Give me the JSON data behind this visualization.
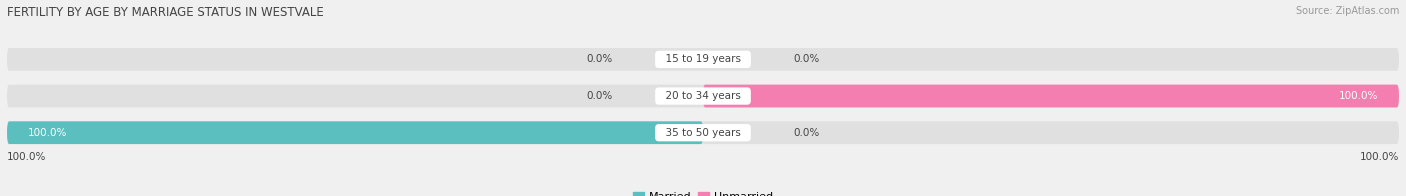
{
  "title": "FERTILITY BY AGE BY MARRIAGE STATUS IN WESTVALE",
  "source": "Source: ZipAtlas.com",
  "categories": [
    "15 to 19 years",
    "20 to 34 years",
    "35 to 50 years"
  ],
  "married_values": [
    0.0,
    0.0,
    100.0
  ],
  "unmarried_values": [
    0.0,
    100.0,
    0.0
  ],
  "married_color": "#5bbfbf",
  "unmarried_color": "#f47eb0",
  "bar_bg_color": "#e0e0e0",
  "bar_height": 0.62,
  "title_fontsize": 8.5,
  "label_fontsize": 7.5,
  "value_fontsize": 7.5,
  "source_fontsize": 7,
  "legend_fontsize": 8,
  "figsize": [
    14.06,
    1.96
  ],
  "dpi": 100,
  "xlim": [
    -100,
    100
  ],
  "text_color": "#444444",
  "bg_color": "#f0f0f0",
  "white": "#ffffff",
  "bar_gap": 0.18
}
